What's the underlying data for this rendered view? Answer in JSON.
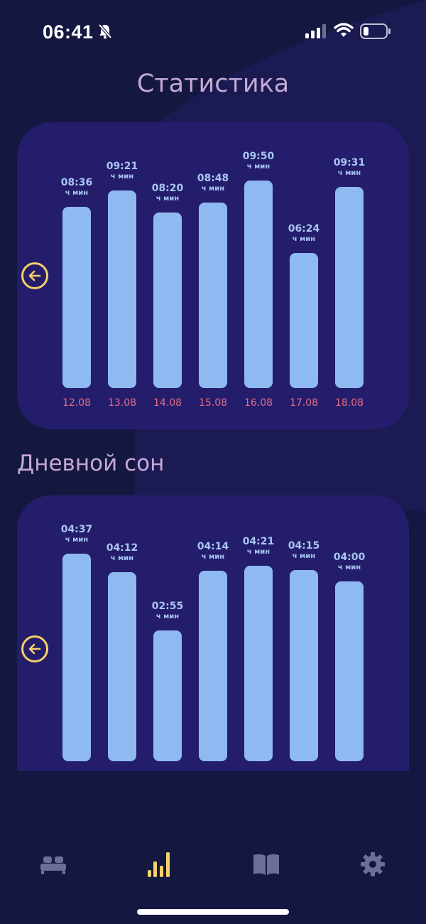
{
  "status_bar": {
    "time": "06:41"
  },
  "title": "Статистика",
  "chart_data": [
    {
      "type": "bar",
      "categories": [
        "12.08",
        "13.08",
        "14.08",
        "15.08",
        "16.08",
        "17.08",
        "18.08"
      ],
      "values": [
        "08:36",
        "09:21",
        "08:20",
        "08:48",
        "09:50",
        "06:24",
        "09:31"
      ],
      "minutes": [
        516,
        561,
        500,
        528,
        590,
        384,
        571
      ],
      "unit": "ч мин"
    },
    {
      "type": "bar",
      "title": "Дневной сон",
      "values": [
        "04:37",
        "04:12",
        "02:55",
        "04:14",
        "04:21",
        "04:15",
        "04:00"
      ],
      "minutes": [
        277,
        252,
        175,
        254,
        261,
        255,
        240
      ],
      "unit": "ч мин"
    }
  ],
  "tabs": [
    {
      "icon": "bed-icon",
      "active": false
    },
    {
      "icon": "stats-icon",
      "active": true
    },
    {
      "icon": "book-icon",
      "active": false
    },
    {
      "icon": "gear-icon",
      "active": false
    }
  ],
  "colors": {
    "background": "#14173f",
    "card": "#241d6b",
    "bar": "#8eb9f1",
    "date": "#e36c87",
    "accent": "#f6d067",
    "title": "#c3a9d4"
  }
}
